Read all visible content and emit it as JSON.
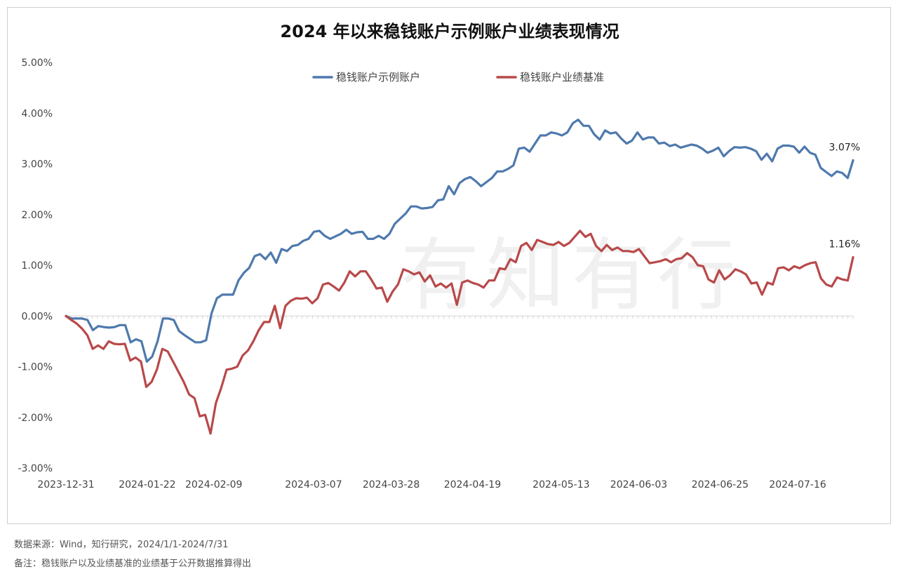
{
  "source": "数据来源：Wind，知行研究，2024/1/1-2024/7/31",
  "remark": "备注：稳钱账户以及业绩基准的业绩基于公开数据推算得出",
  "watermark": "有知有行",
  "chart_data": {
    "type": "line",
    "title": "2024 年以来稳钱账户示例账户业绩表现情况",
    "xlabel": "",
    "ylabel": "",
    "ylim": [
      -3,
      5
    ],
    "yticks": [
      "5.00%",
      "4.00%",
      "3.00%",
      "2.00%",
      "1.00%",
      "0.00%",
      "-1.00%",
      "-2.00%",
      "-3.00%"
    ],
    "xticks": [
      "2023-12-31",
      "2024-01-22",
      "2024-02-09",
      "2024-03-07",
      "2024-03-28",
      "2024-04-19",
      "2024-05-13",
      "2024-06-03",
      "2024-06-25",
      "2024-07-16"
    ],
    "x_start": "2023-12-31",
    "x_end": "2024-07-31",
    "legend_position": "top-center",
    "grid": false,
    "series": [
      {
        "name": "稳钱账户示例账户",
        "color": "#4e79ad",
        "end_label": "3.07%",
        "values": [
          0.0,
          -0.05,
          -0.05,
          -0.05,
          -0.08,
          -0.28,
          -0.2,
          -0.22,
          -0.23,
          -0.22,
          -0.18,
          -0.18,
          -0.52,
          -0.46,
          -0.5,
          -0.9,
          -0.8,
          -0.5,
          -0.05,
          -0.05,
          -0.08,
          -0.3,
          -0.38,
          -0.45,
          -0.52,
          -0.52,
          -0.48,
          0.05,
          0.35,
          0.42,
          0.42,
          0.42,
          0.7,
          0.85,
          0.95,
          1.18,
          1.22,
          1.12,
          1.25,
          1.05,
          1.32,
          1.28,
          1.38,
          1.4,
          1.48,
          1.52,
          1.66,
          1.68,
          1.58,
          1.52,
          1.57,
          1.62,
          1.7,
          1.62,
          1.65,
          1.66,
          1.52,
          1.52,
          1.58,
          1.52,
          1.62,
          1.82,
          1.92,
          2.02,
          2.16,
          2.16,
          2.12,
          2.13,
          2.15,
          2.28,
          2.3,
          2.56,
          2.4,
          2.62,
          2.7,
          2.74,
          2.66,
          2.56,
          2.64,
          2.72,
          2.85,
          2.85,
          2.9,
          2.97,
          3.3,
          3.32,
          3.24,
          3.4,
          3.56,
          3.56,
          3.62,
          3.6,
          3.56,
          3.62,
          3.8,
          3.87,
          3.75,
          3.75,
          3.58,
          3.48,
          3.66,
          3.6,
          3.62,
          3.5,
          3.4,
          3.46,
          3.62,
          3.48,
          3.52,
          3.52,
          3.4,
          3.42,
          3.35,
          3.38,
          3.32,
          3.35,
          3.38,
          3.36,
          3.3,
          3.22,
          3.26,
          3.32,
          3.15,
          3.25,
          3.33,
          3.32,
          3.33,
          3.3,
          3.25,
          3.08,
          3.2,
          3.05,
          3.3,
          3.36,
          3.36,
          3.34,
          3.22,
          3.34,
          3.22,
          3.18,
          2.92,
          2.84,
          2.76,
          2.85,
          2.82,
          2.72,
          3.07
        ]
      },
      {
        "name": "稳钱账户业绩基准",
        "color": "#b8494a",
        "end_label": "1.16%",
        "values": [
          0.0,
          -0.08,
          -0.15,
          -0.25,
          -0.38,
          -0.65,
          -0.58,
          -0.65,
          -0.5,
          -0.55,
          -0.56,
          -0.55,
          -0.88,
          -0.82,
          -0.9,
          -1.4,
          -1.3,
          -1.05,
          -0.65,
          -0.7,
          -0.9,
          -1.1,
          -1.3,
          -1.55,
          -1.62,
          -1.98,
          -1.95,
          -2.32,
          -1.72,
          -1.42,
          -1.06,
          -1.04,
          -1.0,
          -0.78,
          -0.68,
          -0.5,
          -0.28,
          -0.12,
          -0.12,
          0.2,
          -0.24,
          0.2,
          0.3,
          0.35,
          0.34,
          0.36,
          0.25,
          0.35,
          0.62,
          0.65,
          0.58,
          0.5,
          0.66,
          0.88,
          0.78,
          0.88,
          0.88,
          0.72,
          0.54,
          0.56,
          0.28,
          0.48,
          0.62,
          0.92,
          0.88,
          0.82,
          0.86,
          0.68,
          0.8,
          0.58,
          0.64,
          0.56,
          0.64,
          0.22,
          0.66,
          0.7,
          0.65,
          0.62,
          0.56,
          0.7,
          0.7,
          0.94,
          0.92,
          1.12,
          1.06,
          1.38,
          1.44,
          1.3,
          1.5,
          1.46,
          1.42,
          1.4,
          1.46,
          1.38,
          1.44,
          1.56,
          1.68,
          1.56,
          1.62,
          1.38,
          1.28,
          1.4,
          1.3,
          1.35,
          1.28,
          1.28,
          1.26,
          1.32,
          1.18,
          1.04,
          1.06,
          1.08,
          1.12,
          1.06,
          1.12,
          1.14,
          1.24,
          1.16,
          1.0,
          0.98,
          0.72,
          0.66,
          0.9,
          0.72,
          0.8,
          0.92,
          0.88,
          0.82,
          0.64,
          0.66,
          0.42,
          0.66,
          0.62,
          0.94,
          0.96,
          0.9,
          0.98,
          0.94,
          1.0,
          1.04,
          1.06,
          0.74,
          0.62,
          0.58,
          0.76,
          0.72,
          0.7,
          1.16
        ]
      }
    ]
  }
}
